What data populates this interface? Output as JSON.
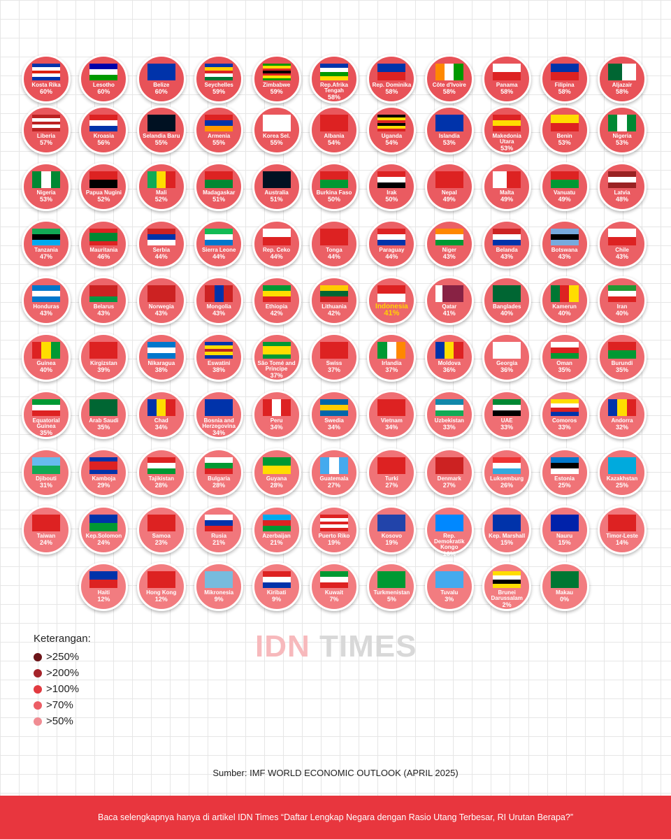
{
  "items": [
    {
      "name": "Kosta Rika",
      "value": "60%"
    },
    {
      "name": "Lesotho",
      "value": "60%"
    },
    {
      "name": "Belize",
      "value": "60%"
    },
    {
      "name": "Seychelles",
      "value": "59%"
    },
    {
      "name": "Zimbabwe",
      "value": "59%"
    },
    {
      "name": "Rep.Afrika Tengah",
      "value": "58%"
    },
    {
      "name": "Rep. Dominika",
      "value": "58%"
    },
    {
      "name": "Côte d'Ivoire",
      "value": "58%"
    },
    {
      "name": "Panama",
      "value": "58%"
    },
    {
      "name": "Filipina",
      "value": "58%"
    },
    {
      "name": "Aljazair",
      "value": "58%"
    },
    {
      "name": "Liberia",
      "value": "57%"
    },
    {
      "name": "Kroasia",
      "value": "56%"
    },
    {
      "name": "Selandia Baru",
      "value": "55%"
    },
    {
      "name": "Armenia",
      "value": "55%"
    },
    {
      "name": "Korea Sel.",
      "value": "55%"
    },
    {
      "name": "Albania",
      "value": "54%"
    },
    {
      "name": "Uganda",
      "value": "54%"
    },
    {
      "name": "Islandia",
      "value": "53%"
    },
    {
      "name": "Makedonia Utara",
      "value": "53%"
    },
    {
      "name": "Benin",
      "value": "53%"
    },
    {
      "name": "Nigeria",
      "value": "53%"
    },
    {
      "name": "Nigeria",
      "value": "53%"
    },
    {
      "name": "Papua Nugini",
      "value": "52%"
    },
    {
      "name": "Mali",
      "value": "52%"
    },
    {
      "name": "Madagaskar",
      "value": "51%"
    },
    {
      "name": "Australia",
      "value": "51%"
    },
    {
      "name": "Burkina Faso",
      "value": "50%"
    },
    {
      "name": "Irak",
      "value": "50%"
    },
    {
      "name": "Nepal",
      "value": "49%"
    },
    {
      "name": "Malta",
      "value": "49%"
    },
    {
      "name": "Vanuatu",
      "value": "49%"
    },
    {
      "name": "Latvia",
      "value": "48%"
    },
    {
      "name": "Tanzania",
      "value": "47%"
    },
    {
      "name": "Mauritania",
      "value": "46%"
    },
    {
      "name": "Serbia",
      "value": "44%"
    },
    {
      "name": "Sierra Leone",
      "value": "44%"
    },
    {
      "name": "Rep. Ceko",
      "value": "44%"
    },
    {
      "name": "Tonga",
      "value": "44%"
    },
    {
      "name": "Paraguay",
      "value": "44%"
    },
    {
      "name": "Niger",
      "value": "43%"
    },
    {
      "name": "Belanda",
      "value": "43%"
    },
    {
      "name": "Botswana",
      "value": "43%"
    },
    {
      "name": "Chile",
      "value": "43%"
    },
    {
      "name": "Honduras",
      "value": "43%"
    },
    {
      "name": "Belarus",
      "value": "43%"
    },
    {
      "name": "Norwegia",
      "value": "43%"
    },
    {
      "name": "Mongolia",
      "value": "43%"
    },
    {
      "name": "Ethiopia",
      "value": "42%"
    },
    {
      "name": "Lithuania",
      "value": "42%"
    },
    {
      "name": "Indonesia",
      "value": "41%"
    },
    {
      "name": "Qatar",
      "value": "41%"
    },
    {
      "name": "Banglades",
      "value": "40%"
    },
    {
      "name": "Kamerun",
      "value": "40%"
    },
    {
      "name": "Iran",
      "value": "40%"
    },
    {
      "name": "Guinea",
      "value": "40%"
    },
    {
      "name": "Kirgizstan",
      "value": "39%"
    },
    {
      "name": "Nikaragua",
      "value": "38%"
    },
    {
      "name": "Eswatini",
      "value": "38%"
    },
    {
      "name": "São Tomé and Principe",
      "value": "37%"
    },
    {
      "name": "Swiss",
      "value": "37%"
    },
    {
      "name": "Irlandia",
      "value": "37%"
    },
    {
      "name": "Moldova",
      "value": "36%"
    },
    {
      "name": "Georgia",
      "value": "36%"
    },
    {
      "name": "Oman",
      "value": "35%"
    },
    {
      "name": "Burundi",
      "value": "35%"
    },
    {
      "name": "Equatorial Guinea",
      "value": "35%"
    },
    {
      "name": "Arab Saudi",
      "value": "35%"
    },
    {
      "name": "Chad",
      "value": "34%"
    },
    {
      "name": "Bosnia and Herzegovina",
      "value": "34%"
    },
    {
      "name": "Peru",
      "value": "34%"
    },
    {
      "name": "Swedia",
      "value": "34%"
    },
    {
      "name": "Vietnam",
      "value": "34%"
    },
    {
      "name": "Uzbekistan",
      "value": "33%"
    },
    {
      "name": "UAE",
      "value": "33%"
    },
    {
      "name": "Comoros",
      "value": "33%"
    },
    {
      "name": "Andorra",
      "value": "32%"
    },
    {
      "name": "Djibouti",
      "value": "31%"
    },
    {
      "name": "Kamboja",
      "value": "29%"
    },
    {
      "name": "Tajikistan",
      "value": "28%"
    },
    {
      "name": "Bulgaria",
      "value": "28%"
    },
    {
      "name": "Guyana",
      "value": "28%"
    },
    {
      "name": "Guatemala",
      "value": "27%"
    },
    {
      "name": "Turki",
      "value": "27%"
    },
    {
      "name": "Denmark",
      "value": "27%"
    },
    {
      "name": "Luksemburg",
      "value": "26%"
    },
    {
      "name": "Estonia",
      "value": "25%"
    },
    {
      "name": "Kazakhstan",
      "value": "25%"
    },
    {
      "name": "Taiwan",
      "value": "24%"
    },
    {
      "name": "Kep.Solomon",
      "value": "24%"
    },
    {
      "name": "Samoa",
      "value": "23%"
    },
    {
      "name": "Rusia",
      "value": "21%"
    },
    {
      "name": "Azerbaijan",
      "value": "21%"
    },
    {
      "name": "Puerto Riko",
      "value": "19%"
    },
    {
      "name": "Kosovo",
      "value": "19%"
    },
    {
      "name": "Rep. Demokratik Kongo",
      "value": "16%"
    },
    {
      "name": "Kep. Marshall",
      "value": "15%"
    },
    {
      "name": "Nauru",
      "value": "15%"
    },
    {
      "name": "Timor-Leste",
      "value": "14%"
    },
    {
      "name": "Haiti",
      "value": "12%"
    },
    {
      "name": "Hong Kong",
      "value": "12%"
    },
    {
      "name": "Mikronesia",
      "value": "9%"
    },
    {
      "name": "Kiribati",
      "value": "9%"
    },
    {
      "name": "Kuwait",
      "value": "7%"
    },
    {
      "name": "Turkmenistan",
      "value": "5%"
    },
    {
      "name": "Tuvalu",
      "value": "3%"
    },
    {
      "name": "Brunei Darussalam",
      "value": "2%"
    },
    {
      "name": "Makau",
      "value": "0%"
    }
  ],
  "legend": {
    "title": "Keterangan:",
    "items": [
      ">250%",
      ">200%",
      ">100%",
      ">70%",
      ">50%"
    ]
  },
  "logo": {
    "part1": "IDN",
    "part2": "TIMES"
  },
  "source": "Sumber: IMF WORLD ECONOMIC OUTLOOK (APRIL 2025)",
  "footer": "Baca selengkapnya hanya di artikel IDN Times “Daftar Lengkap Negara dengan Rasio Utang Terbesar, RI Urutan Berapa?”"
}
